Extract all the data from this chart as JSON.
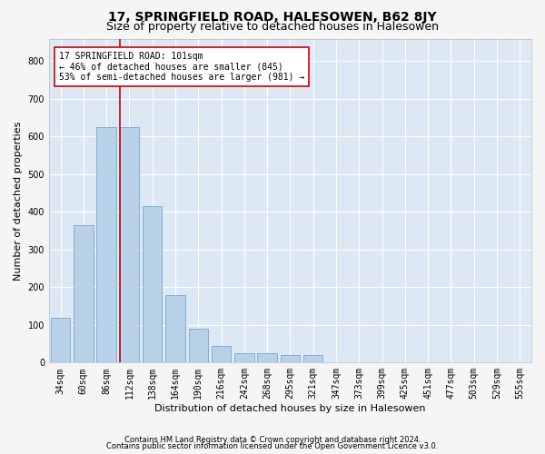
{
  "title": "17, SPRINGFIELD ROAD, HALESOWEN, B62 8JY",
  "subtitle": "Size of property relative to detached houses in Halesowen",
  "xlabel": "Distribution of detached houses by size in Halesowen",
  "ylabel": "Number of detached properties",
  "bar_labels": [
    "34sqm",
    "60sqm",
    "86sqm",
    "112sqm",
    "138sqm",
    "164sqm",
    "190sqm",
    "216sqm",
    "242sqm",
    "268sqm",
    "295sqm",
    "321sqm",
    "347sqm",
    "373sqm",
    "399sqm",
    "425sqm",
    "451sqm",
    "477sqm",
    "503sqm",
    "529sqm",
    "555sqm"
  ],
  "bar_values": [
    120,
    365,
    625,
    625,
    415,
    180,
    90,
    45,
    25,
    25,
    20,
    20,
    0,
    0,
    0,
    0,
    0,
    0,
    0,
    0,
    0
  ],
  "bar_color": "#b8d0e8",
  "bar_edge_color": "#6699cc",
  "background_color": "#dce9f5",
  "grid_color": "#ffffff",
  "property_line_color": "#cc0000",
  "annotation_text": "17 SPRINGFIELD ROAD: 101sqm\n← 46% of detached houses are smaller (845)\n53% of semi-detached houses are larger (981) →",
  "annotation_box_facecolor": "#ffffff",
  "annotation_box_edgecolor": "#cc0000",
  "ylim": [
    0,
    860
  ],
  "yticks": [
    0,
    100,
    200,
    300,
    400,
    500,
    600,
    700,
    800
  ],
  "fig_facecolor": "#f5f5f5",
  "footer1": "Contains HM Land Registry data © Crown copyright and database right 2024.",
  "footer2": "Contains public sector information licensed under the Open Government Licence v3.0.",
  "title_fontsize": 10,
  "subtitle_fontsize": 9,
  "xlabel_fontsize": 8,
  "ylabel_fontsize": 8,
  "tick_fontsize": 7,
  "annotation_fontsize": 7,
  "footer_fontsize": 6
}
